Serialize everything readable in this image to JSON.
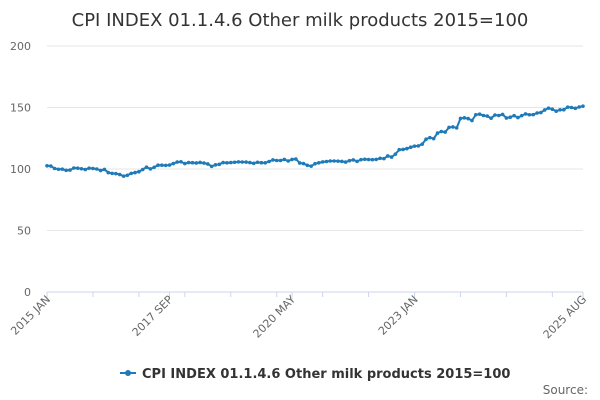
{
  "chart_data": {
    "type": "line",
    "title": "CPI INDEX 01.1.4.6 Other milk products 2015=100",
    "xlabel": "",
    "ylabel": "",
    "ylim": [
      0,
      200
    ],
    "y_ticks": [
      0,
      50,
      100,
      150,
      200
    ],
    "x_tick_labels": [
      "2015 JAN",
      "2017 SEP",
      "2020 MAY",
      "2023 JAN",
      "2025 AUG"
    ],
    "grid": true,
    "legend_position": "bottom",
    "source_label": "Source:",
    "colors": {
      "series": "#1f7ab8",
      "grid": "#e6e6e6",
      "axis": "#ccd6eb"
    },
    "series": [
      {
        "name": "CPI INDEX 01.1.4.6 Other milk products 2015=100",
        "start": "2015-01",
        "frequency": "monthly",
        "values": [
          102.6,
          102.4,
          100.4,
          99.8,
          99.9,
          98.9,
          99.1,
          100.8,
          100.7,
          100.2,
          99.6,
          100.7,
          100.4,
          100.0,
          98.8,
          99.7,
          97.1,
          96.4,
          96.2,
          95.5,
          94.2,
          94.9,
          96.4,
          97.1,
          97.8,
          99.6,
          101.5,
          100.1,
          101.4,
          103.1,
          103.1,
          102.9,
          103.2,
          104.4,
          105.6,
          105.9,
          104.4,
          105.2,
          105.1,
          104.9,
          105.3,
          104.8,
          104.1,
          102.1,
          103.4,
          103.8,
          105.2,
          105.0,
          105.2,
          105.5,
          105.8,
          105.7,
          105.6,
          105.2,
          104.6,
          105.5,
          105.1,
          105.0,
          106.1,
          107.4,
          106.9,
          106.9,
          107.8,
          106.5,
          107.8,
          108.1,
          104.9,
          104.4,
          103.0,
          102.3,
          104.3,
          105.0,
          105.8,
          106.1,
          106.5,
          106.5,
          106.4,
          106.2,
          105.6,
          106.8,
          107.4,
          106.2,
          107.6,
          107.9,
          107.7,
          107.6,
          107.8,
          108.7,
          108.4,
          110.6,
          109.7,
          112.1,
          115.7,
          115.9,
          116.6,
          117.7,
          118.6,
          118.8,
          120.2,
          124.2,
          125.5,
          124.7,
          129.2,
          130.5,
          130.0,
          133.8,
          134.2,
          133.4,
          141.1,
          141.6,
          141.0,
          139.4,
          144.1,
          144.6,
          143.5,
          143.0,
          141.3,
          143.9,
          143.5,
          144.4,
          141.5,
          142.1,
          143.4,
          141.8,
          143.4,
          144.8,
          144.1,
          144.2,
          145.5,
          145.9,
          148.0,
          149.5,
          148.6,
          147.0,
          148.1,
          148.2,
          150.3,
          150.0,
          149.3,
          150.4,
          151.1
        ]
      }
    ]
  }
}
